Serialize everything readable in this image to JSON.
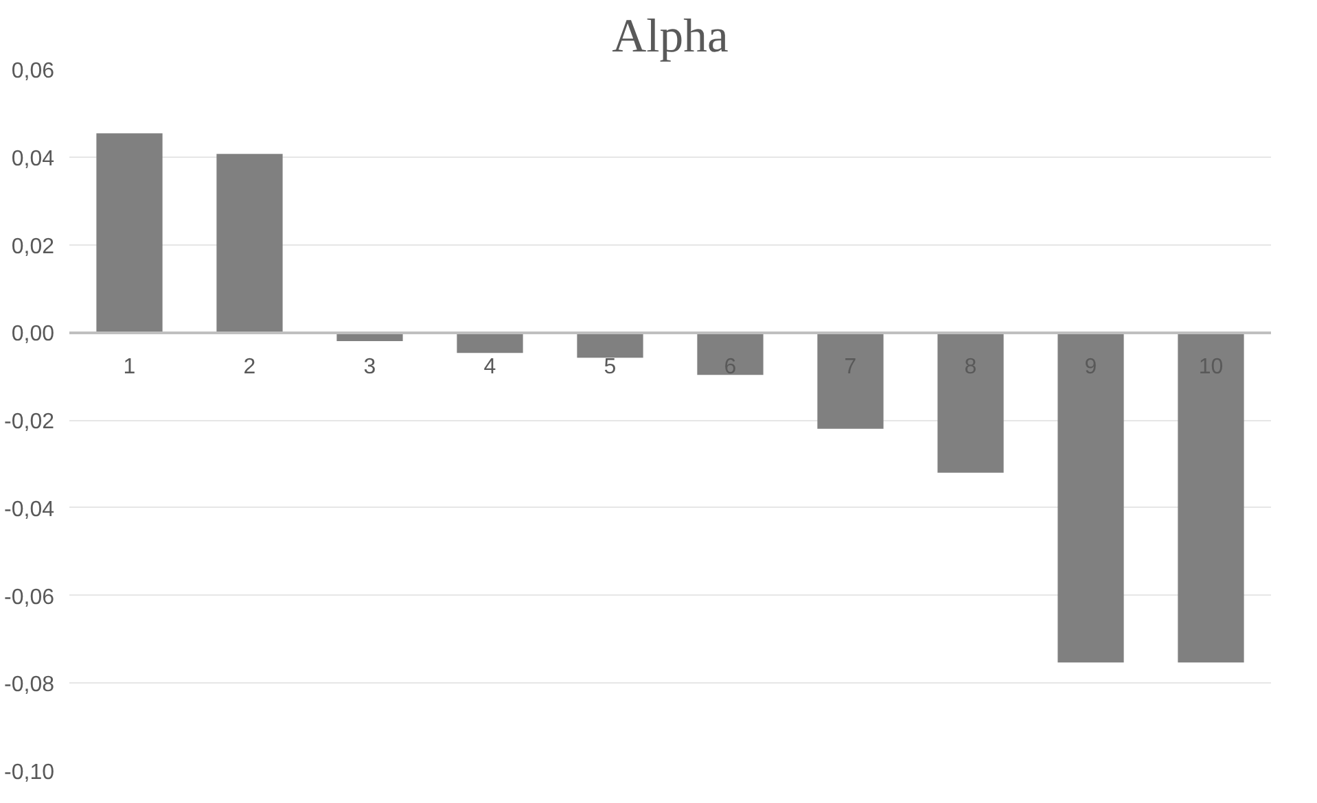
{
  "chart_data": {
    "type": "bar",
    "title": "Alpha",
    "categories": [
      "1",
      "2",
      "3",
      "4",
      "5",
      "6",
      "7",
      "8",
      "9",
      "10"
    ],
    "values": [
      0.0454,
      0.0407,
      -0.002,
      -0.0047,
      -0.0058,
      -0.0097,
      -0.022,
      -0.032,
      -0.0753,
      -0.0753
    ],
    "color": "#808080",
    "ylim": [
      -0.1,
      0.06
    ],
    "yticks": [
      {
        "value": -0.1,
        "label": "-0,10"
      },
      {
        "value": -0.08,
        "label": "-0,08"
      },
      {
        "value": -0.06,
        "label": "-0,06"
      },
      {
        "value": -0.04,
        "label": "-0,04"
      },
      {
        "value": -0.02,
        "label": "-0,02"
      },
      {
        "value": 0.0,
        "label": "0,00"
      },
      {
        "value": 0.02,
        "label": "0,02"
      },
      {
        "value": 0.04,
        "label": "0,04"
      },
      {
        "value": 0.06,
        "label": "0,06"
      }
    ],
    "grid": "y"
  }
}
